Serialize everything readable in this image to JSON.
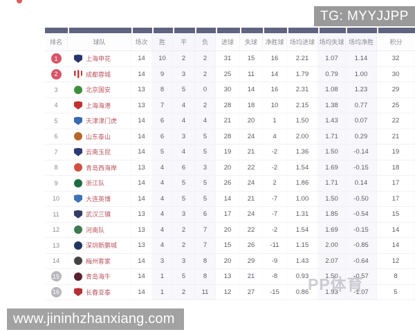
{
  "tg_badge": {
    "text": "TG: MYYJJPP"
  },
  "url_watermark": {
    "text": "www.jininhzhanxiang.com"
  },
  "pp_watermark": {
    "text": "PP体育"
  },
  "colors": {
    "table_top_bar": "#5f6480",
    "rank_badge_top": "#d85468",
    "rank_badge_bottom": "#b6b6bc",
    "team_name": "#b9545e"
  },
  "table": {
    "headers": [
      "排名",
      "球队",
      "场次",
      "胜",
      "平",
      "负",
      "进球",
      "失球",
      "净胜球",
      "场均进球",
      "场均失球",
      "场均净胜",
      "积分"
    ],
    "rows": [
      {
        "rank": "1",
        "rank_style": "red",
        "team": "上海申花",
        "logo": {
          "shape": "shield",
          "color": "#27356e"
        },
        "cells": [
          "14",
          "10",
          "2",
          "2",
          "31",
          "15",
          "16",
          "2.21",
          "1.07",
          "1.14",
          "32"
        ]
      },
      {
        "rank": "2",
        "rank_style": "red",
        "team": "成都蓉城",
        "logo": {
          "shape": "shield",
          "color": "repeating-linear-gradient(90deg,#c43b3b 0 2.5px,#ffffff 2.5px 5px)"
        },
        "cells": [
          "14",
          "9",
          "3",
          "2",
          "25",
          "11",
          "14",
          "1.79",
          "0.79",
          "1.00",
          "30"
        ]
      },
      {
        "rank": "3",
        "rank_style": "plain",
        "team": "北京国安",
        "logo": {
          "shape": "circle",
          "color": "#3d8f3d"
        },
        "cells": [
          "13",
          "8",
          "5",
          "0",
          "30",
          "14",
          "16",
          "2.31",
          "1.08",
          "1.23",
          "29"
        ]
      },
      {
        "rank": "4",
        "rank_style": "plain",
        "team": "上海海港",
        "logo": {
          "shape": "shield",
          "color": "#c03030"
        },
        "cells": [
          "13",
          "7",
          "4",
          "2",
          "28",
          "18",
          "10",
          "2.15",
          "1.38",
          "0.77",
          "25"
        ]
      },
      {
        "rank": "5",
        "rank_style": "plain",
        "team": "天津津门虎",
        "logo": {
          "shape": "shield",
          "color": "#3a6ab0"
        },
        "cells": [
          "14",
          "6",
          "4",
          "4",
          "21",
          "20",
          "1",
          "1.50",
          "1.43",
          "0.07",
          "22"
        ]
      },
      {
        "rank": "6",
        "rank_style": "plain",
        "team": "山东泰山",
        "logo": {
          "shape": "circle",
          "color": "#b5672a"
        },
        "cells": [
          "14",
          "6",
          "3",
          "5",
          "28",
          "24",
          "4",
          "2.00",
          "1.71",
          "0.29",
          "21"
        ]
      },
      {
        "rank": "7",
        "rank_style": "plain",
        "team": "云南玉昆",
        "logo": {
          "shape": "shield",
          "color": "#2c3a75"
        },
        "cells": [
          "14",
          "5",
          "4",
          "5",
          "19",
          "21",
          "-2",
          "1.36",
          "1.50",
          "-0.14",
          "19"
        ]
      },
      {
        "rank": "8",
        "rank_style": "plain",
        "team": "青岛西海岸",
        "logo": {
          "shape": "circle",
          "color": "#d05040"
        },
        "cells": [
          "13",
          "4",
          "6",
          "3",
          "20",
          "22",
          "-2",
          "1.54",
          "1.69",
          "-0.15",
          "18"
        ]
      },
      {
        "rank": "9",
        "rank_style": "plain",
        "team": "浙江队",
        "logo": {
          "shape": "circle",
          "color": "#1f6b40"
        },
        "cells": [
          "14",
          "4",
          "5",
          "5",
          "26",
          "24",
          "2",
          "1.86",
          "1.71",
          "0.14",
          "17"
        ]
      },
      {
        "rank": "10",
        "rank_style": "plain",
        "team": "大连英博",
        "logo": {
          "shape": "shield",
          "color": "#3f72b5"
        },
        "cells": [
          "14",
          "4",
          "5",
          "5",
          "14",
          "21",
          "-7",
          "1.00",
          "1.50",
          "-0.50",
          "17"
        ]
      },
      {
        "rank": "11",
        "rank_style": "plain",
        "team": "武汉三镇",
        "logo": {
          "shape": "shield",
          "color": "#333a66"
        },
        "cells": [
          "13",
          "4",
          "3",
          "6",
          "17",
          "24",
          "-7",
          "1.31",
          "1.85",
          "-0.54",
          "15"
        ]
      },
      {
        "rank": "12",
        "rank_style": "plain",
        "team": "河南队",
        "logo": {
          "shape": "circle",
          "color": "#3e7a4e"
        },
        "cells": [
          "13",
          "4",
          "2",
          "7",
          "20",
          "22",
          "-2",
          "1.54",
          "1.69",
          "-0.15",
          "14"
        ]
      },
      {
        "rank": "13",
        "rank_style": "plain",
        "team": "深圳新鹏城",
        "logo": {
          "shape": "circle",
          "color": "#20365e"
        },
        "cells": [
          "13",
          "4",
          "2",
          "7",
          "15",
          "26",
          "-11",
          "1.15",
          "2.00",
          "-0.85",
          "14"
        ]
      },
      {
        "rank": "14",
        "rank_style": "plain",
        "team": "梅州客家",
        "logo": {
          "shape": "circle",
          "color": "#444444"
        },
        "cells": [
          "14",
          "3",
          "3",
          "8",
          "20",
          "29",
          "-9",
          "1.43",
          "2.07",
          "-0.64",
          "12"
        ]
      },
      {
        "rank": "15",
        "rank_style": "gray",
        "team": "青岛海牛",
        "logo": {
          "shape": "circle",
          "color": "#5a2230"
        },
        "cells": [
          "14",
          "1",
          "5",
          "8",
          "13",
          "21",
          "-8",
          "0.93",
          "1.50",
          "-0.57",
          "8"
        ]
      },
      {
        "rank": "16",
        "rank_style": "gray",
        "team": "长春亚泰",
        "logo": {
          "shape": "shield",
          "color": "#b62f35"
        },
        "cells": [
          "14",
          "1",
          "2",
          "11",
          "12",
          "27",
          "-15",
          "0.86",
          "1.93",
          "-1.07",
          "5"
        ]
      }
    ]
  }
}
